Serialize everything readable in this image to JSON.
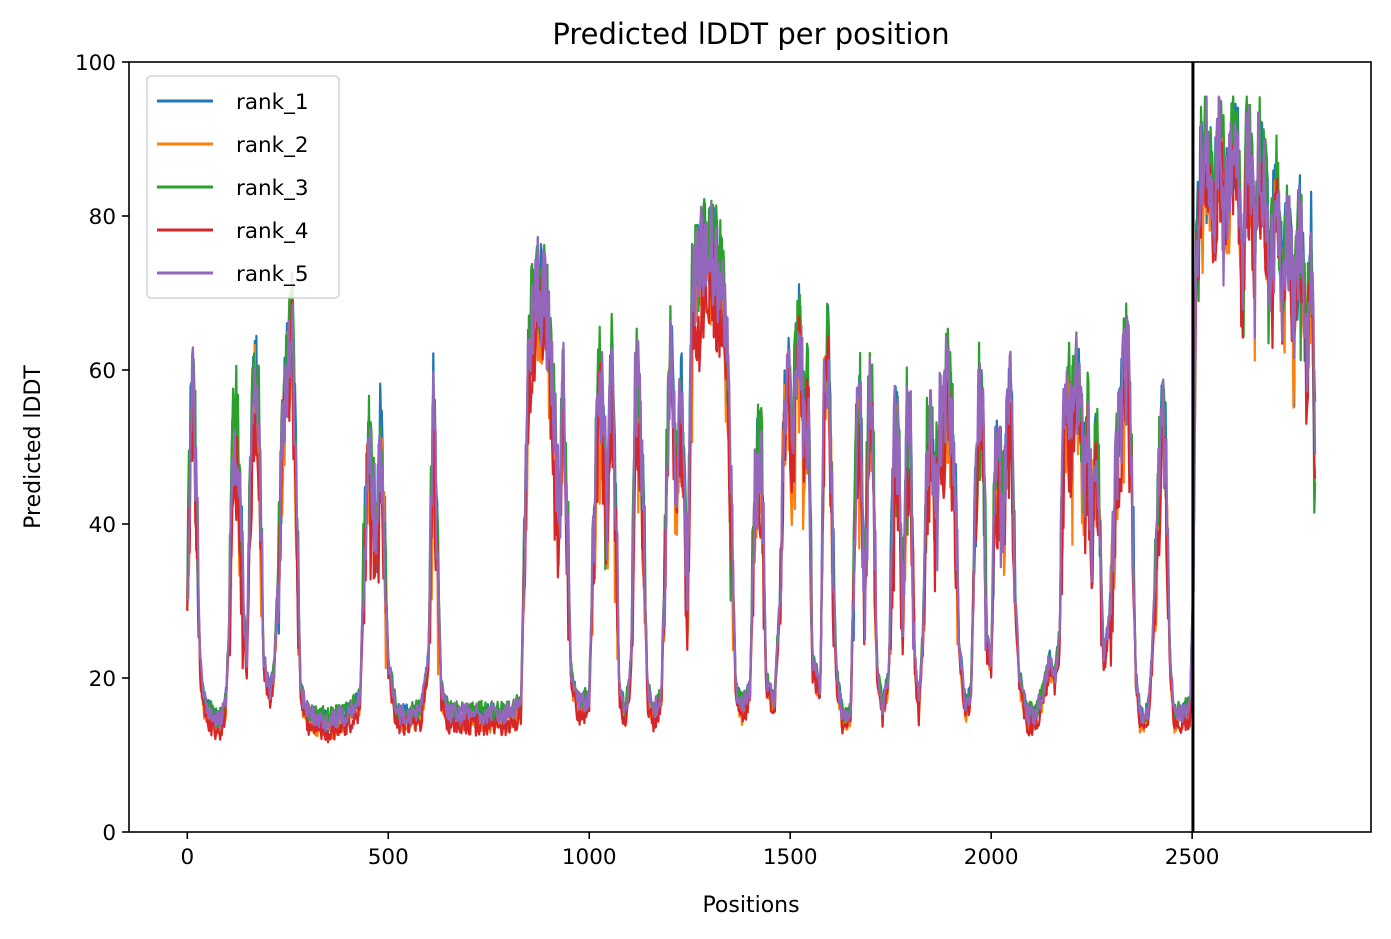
{
  "chart_data": {
    "type": "line",
    "title": "Predicted lDDT per position",
    "xlabel": "Positions",
    "ylabel": "Predicted lDDT",
    "xlim": [
      -145,
      2945
    ],
    "ylim": [
      0,
      100
    ],
    "x_ticks": [
      0,
      500,
      1000,
      1500,
      2000,
      2500
    ],
    "y_ticks": [
      0,
      20,
      40,
      60,
      80,
      100
    ],
    "grid": false,
    "legend_position": "upper-left",
    "vertical_line_x": 2502,
    "vertical_line_color": "#000000",
    "n_positions": 2806,
    "series": [
      {
        "name": "rank_1",
        "color": "#1f77b4"
      },
      {
        "name": "rank_2",
        "color": "#ff7f0e"
      },
      {
        "name": "rank_3",
        "color": "#2ca02c"
      },
      {
        "name": "rank_4",
        "color": "#d62728"
      },
      {
        "name": "rank_5",
        "color": "#9467bd"
      }
    ],
    "profile_points": [
      [
        0,
        30
      ],
      [
        8,
        52
      ],
      [
        15,
        56
      ],
      [
        22,
        45
      ],
      [
        32,
        22
      ],
      [
        40,
        17
      ],
      [
        60,
        15
      ],
      [
        80,
        14
      ],
      [
        95,
        16
      ],
      [
        105,
        28
      ],
      [
        112,
        48
      ],
      [
        122,
        52
      ],
      [
        130,
        44
      ],
      [
        140,
        28
      ],
      [
        148,
        22
      ],
      [
        158,
        48
      ],
      [
        168,
        60
      ],
      [
        178,
        52
      ],
      [
        190,
        22
      ],
      [
        205,
        18
      ],
      [
        215,
        20
      ],
      [
        228,
        35
      ],
      [
        240,
        55
      ],
      [
        252,
        62
      ],
      [
        262,
        66
      ],
      [
        272,
        40
      ],
      [
        282,
        18
      ],
      [
        300,
        15
      ],
      [
        350,
        14
      ],
      [
        400,
        15
      ],
      [
        430,
        17
      ],
      [
        440,
        35
      ],
      [
        450,
        50
      ],
      [
        460,
        46
      ],
      [
        470,
        36
      ],
      [
        480,
        52
      ],
      [
        490,
        40
      ],
      [
        500,
        22
      ],
      [
        520,
        15
      ],
      [
        580,
        15
      ],
      [
        600,
        22
      ],
      [
        612,
        55
      ],
      [
        620,
        40
      ],
      [
        632,
        18
      ],
      [
        650,
        15
      ],
      [
        700,
        15
      ],
      [
        750,
        15
      ],
      [
        800,
        15
      ],
      [
        830,
        16
      ],
      [
        850,
        62
      ],
      [
        870,
        70
      ],
      [
        890,
        68
      ],
      [
        905,
        60
      ],
      [
        915,
        50
      ],
      [
        925,
        40
      ],
      [
        935,
        58
      ],
      [
        945,
        40
      ],
      [
        955,
        20
      ],
      [
        975,
        16
      ],
      [
        1000,
        17
      ],
      [
        1015,
        45
      ],
      [
        1025,
        60
      ],
      [
        1035,
        52
      ],
      [
        1045,
        40
      ],
      [
        1055,
        60
      ],
      [
        1065,
        45
      ],
      [
        1075,
        18
      ],
      [
        1090,
        15
      ],
      [
        1105,
        22
      ],
      [
        1115,
        58
      ],
      [
        1125,
        55
      ],
      [
        1135,
        40
      ],
      [
        1145,
        18
      ],
      [
        1160,
        15
      ],
      [
        1180,
        18
      ],
      [
        1195,
        52
      ],
      [
        1205,
        64
      ],
      [
        1215,
        45
      ],
      [
        1230,
        55
      ],
      [
        1245,
        30
      ],
      [
        1255,
        68
      ],
      [
        1270,
        72
      ],
      [
        1290,
        75
      ],
      [
        1310,
        74
      ],
      [
        1330,
        70
      ],
      [
        1345,
        58
      ],
      [
        1355,
        38
      ],
      [
        1365,
        18
      ],
      [
        1380,
        16
      ],
      [
        1400,
        18
      ],
      [
        1410,
        40
      ],
      [
        1420,
        50
      ],
      [
        1430,
        45
      ],
      [
        1440,
        20
      ],
      [
        1460,
        16
      ],
      [
        1475,
        30
      ],
      [
        1485,
        55
      ],
      [
        1495,
        58
      ],
      [
        1505,
        48
      ],
      [
        1515,
        60
      ],
      [
        1525,
        65
      ],
      [
        1535,
        50
      ],
      [
        1545,
        58
      ],
      [
        1555,
        22
      ],
      [
        1575,
        18
      ],
      [
        1585,
        58
      ],
      [
        1595,
        62
      ],
      [
        1605,
        40
      ],
      [
        1615,
        20
      ],
      [
        1630,
        15
      ],
      [
        1650,
        15
      ],
      [
        1665,
        50
      ],
      [
        1675,
        55
      ],
      [
        1685,
        28
      ],
      [
        1695,
        56
      ],
      [
        1705,
        55
      ],
      [
        1715,
        22
      ],
      [
        1730,
        16
      ],
      [
        1745,
        20
      ],
      [
        1760,
        52
      ],
      [
        1770,
        48
      ],
      [
        1780,
        25
      ],
      [
        1790,
        52
      ],
      [
        1800,
        50
      ],
      [
        1810,
        22
      ],
      [
        1820,
        16
      ],
      [
        1830,
        25
      ],
      [
        1840,
        48
      ],
      [
        1850,
        52
      ],
      [
        1860,
        40
      ],
      [
        1870,
        52
      ],
      [
        1880,
        50
      ],
      [
        1890,
        58
      ],
      [
        1900,
        52
      ],
      [
        1910,
        45
      ],
      [
        1920,
        25
      ],
      [
        1935,
        16
      ],
      [
        1950,
        18
      ],
      [
        1960,
        40
      ],
      [
        1970,
        55
      ],
      [
        1980,
        52
      ],
      [
        1990,
        24
      ],
      [
        2000,
        22
      ],
      [
        2010,
        45
      ],
      [
        2020,
        48
      ],
      [
        2030,
        40
      ],
      [
        2040,
        52
      ],
      [
        2050,
        55
      ],
      [
        2060,
        30
      ],
      [
        2070,
        20
      ],
      [
        2090,
        15
      ],
      [
        2110,
        15
      ],
      [
        2130,
        18
      ],
      [
        2145,
        22
      ],
      [
        2160,
        20
      ],
      [
        2170,
        25
      ],
      [
        2180,
        50
      ],
      [
        2190,
        58
      ],
      [
        2200,
        52
      ],
      [
        2210,
        58
      ],
      [
        2220,
        55
      ],
      [
        2230,
        45
      ],
      [
        2240,
        52
      ],
      [
        2250,
        40
      ],
      [
        2260,
        50
      ],
      [
        2270,
        40
      ],
      [
        2280,
        22
      ],
      [
        2295,
        28
      ],
      [
        2310,
        45
      ],
      [
        2320,
        52
      ],
      [
        2330,
        58
      ],
      [
        2340,
        62
      ],
      [
        2350,
        45
      ],
      [
        2360,
        20
      ],
      [
        2370,
        15
      ],
      [
        2390,
        15
      ],
      [
        2400,
        22
      ],
      [
        2415,
        42
      ],
      [
        2425,
        52
      ],
      [
        2435,
        48
      ],
      [
        2445,
        22
      ],
      [
        2455,
        15
      ],
      [
        2475,
        15
      ],
      [
        2495,
        16
      ],
      [
        2502,
        30
      ],
      [
        2510,
        72
      ],
      [
        2520,
        85
      ],
      [
        2535,
        90
      ],
      [
        2545,
        85
      ],
      [
        2555,
        80
      ],
      [
        2565,
        90
      ],
      [
        2575,
        86
      ],
      [
        2590,
        82
      ],
      [
        2600,
        90
      ],
      [
        2615,
        88
      ],
      [
        2625,
        70
      ],
      [
        2635,
        88
      ],
      [
        2645,
        86
      ],
      [
        2655,
        75
      ],
      [
        2665,
        88
      ],
      [
        2675,
        84
      ],
      [
        2685,
        80
      ],
      [
        2695,
        70
      ],
      [
        2705,
        84
      ],
      [
        2715,
        80
      ],
      [
        2725,
        68
      ],
      [
        2735,
        78
      ],
      [
        2745,
        74
      ],
      [
        2755,
        65
      ],
      [
        2765,
        80
      ],
      [
        2775,
        72
      ],
      [
        2785,
        60
      ],
      [
        2795,
        78
      ],
      [
        2806,
        50
      ]
    ]
  }
}
